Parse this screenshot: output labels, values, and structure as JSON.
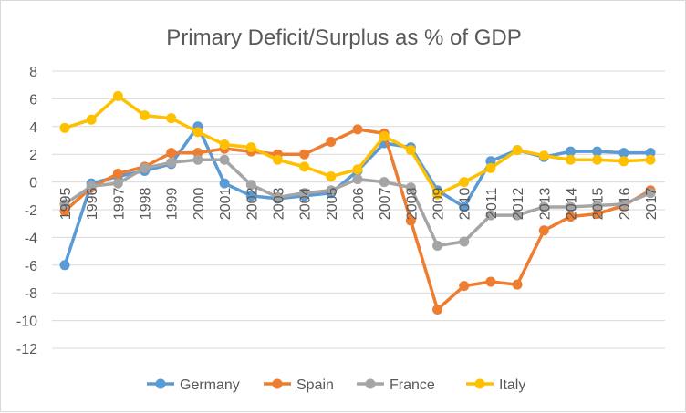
{
  "chart_data": {
    "type": "line",
    "title": "Primary Deficit/Surplus as % of GDP",
    "xlabel": "",
    "ylabel": "",
    "ylim": [
      -12,
      8
    ],
    "yticks": [
      8,
      6,
      4,
      2,
      0,
      -2,
      -4,
      -6,
      -8,
      -10,
      -12
    ],
    "grid": true,
    "legend": "bottom",
    "categories": [
      "1995",
      "1996",
      "1997",
      "1998",
      "1999",
      "2000",
      "2001",
      "2002",
      "2003",
      "2004",
      "2005",
      "2006",
      "2007",
      "2008",
      "2009",
      "2010",
      "2011",
      "2012",
      "2013",
      "2014",
      "2015",
      "2016",
      "2017"
    ],
    "series": [
      {
        "name": "Germany",
        "color": "#5B9BD5",
        "values": [
          -6.0,
          -0.1,
          0.4,
          0.8,
          1.3,
          4.0,
          -0.1,
          -1.0,
          -1.2,
          -1.0,
          -0.8,
          0.8,
          2.8,
          2.5,
          -0.6,
          -1.8,
          1.5,
          2.3,
          1.8,
          2.2,
          2.2,
          2.1,
          2.1
        ]
      },
      {
        "name": "Spain",
        "color": "#ED7D31",
        "values": [
          -2.1,
          -0.4,
          0.6,
          1.1,
          2.1,
          2.1,
          2.4,
          2.2,
          2.0,
          2.0,
          2.9,
          3.8,
          3.5,
          -2.8,
          -9.2,
          -7.5,
          -7.2,
          -7.4,
          -3.5,
          -2.5,
          -2.3,
          -1.7,
          -0.6
        ]
      },
      {
        "name": "France",
        "color": "#A5A5A5",
        "values": [
          -1.6,
          -0.3,
          -0.1,
          1.0,
          1.4,
          1.6,
          1.6,
          -0.2,
          -1.1,
          -0.8,
          -0.6,
          0.2,
          0.0,
          -0.4,
          -4.6,
          -4.3,
          -2.4,
          -2.4,
          -1.8,
          -1.8,
          -1.7,
          -1.6,
          -0.8
        ]
      },
      {
        "name": "Italy",
        "color": "#FFC000",
        "values": [
          3.9,
          4.5,
          6.2,
          4.8,
          4.6,
          3.6,
          2.7,
          2.5,
          1.6,
          1.1,
          0.4,
          0.9,
          3.3,
          2.3,
          -0.9,
          0.0,
          1.0,
          2.3,
          1.9,
          1.6,
          1.6,
          1.5,
          1.6
        ]
      }
    ]
  }
}
